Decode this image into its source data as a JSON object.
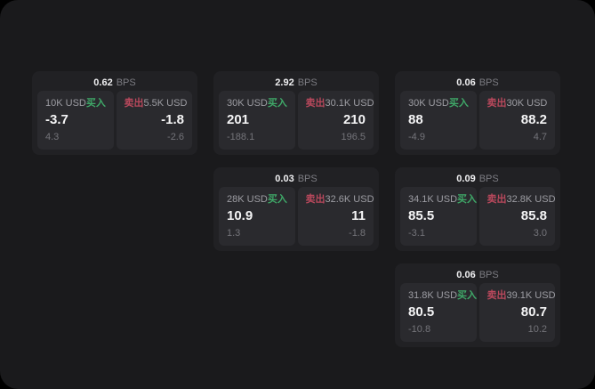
{
  "colors": {
    "outer_background": "#000000",
    "panel_background": "#1a1a1c",
    "card_background": "#212124",
    "tile_background": "#2a2a2e",
    "buy_green": "#3fa868",
    "sell_red": "#b8485c",
    "value_white": "#f4f4f5",
    "label_gray": "#9d9da3",
    "muted_gray": "#74747a"
  },
  "cards": [
    {
      "bps": "0.62",
      "unit": "BPS",
      "buy": {
        "size": "10K USD",
        "label": "买入",
        "value": "-3.7",
        "delta": "4.3"
      },
      "sell": {
        "label": "卖出",
        "size": "5.5K USD",
        "value": "-1.8",
        "delta": "-2.6"
      }
    },
    {
      "bps": "2.92",
      "unit": "BPS",
      "buy": {
        "size": "30K USD",
        "label": "买入",
        "value": "201",
        "delta": "-188.1"
      },
      "sell": {
        "label": "卖出",
        "size": "30.1K USD",
        "value": "210",
        "delta": "196.5"
      }
    },
    {
      "bps": "0.06",
      "unit": "BPS",
      "buy": {
        "size": "30K USD",
        "label": "买入",
        "value": "88",
        "delta": "-4.9"
      },
      "sell": {
        "label": "卖出",
        "size": "30K USD",
        "value": "88.2",
        "delta": "4.7"
      }
    },
    {
      "bps": "0.03",
      "unit": "BPS",
      "buy": {
        "size": "28K USD",
        "label": "买入",
        "value": "10.9",
        "delta": "1.3"
      },
      "sell": {
        "label": "卖出",
        "size": "32.6K USD",
        "value": "11",
        "delta": "-1.8"
      }
    },
    {
      "bps": "0.09",
      "unit": "BPS",
      "buy": {
        "size": "34.1K USD",
        "label": "买入",
        "value": "85.5",
        "delta": "-3.1"
      },
      "sell": {
        "label": "卖出",
        "size": "32.8K USD",
        "value": "85.8",
        "delta": "3.0"
      }
    },
    {
      "bps": "0.06",
      "unit": "BPS",
      "buy": {
        "size": "31.8K USD",
        "label": "买入",
        "value": "80.5",
        "delta": "-10.8"
      },
      "sell": {
        "label": "卖出",
        "size": "39.1K USD",
        "value": "80.7",
        "delta": "10.2"
      }
    }
  ]
}
